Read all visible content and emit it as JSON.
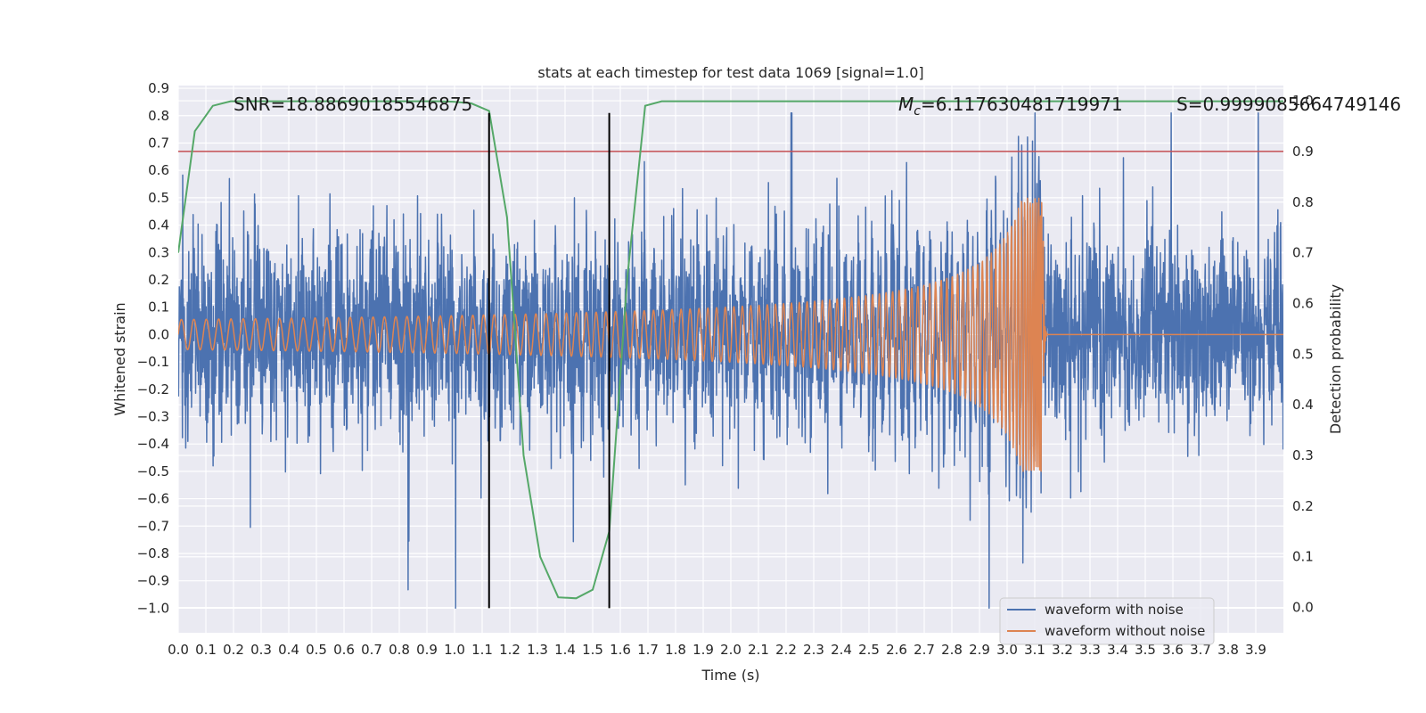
{
  "chart_data": {
    "type": "line",
    "title": "stats at each timestep for test data 1069 [signal=1.0]",
    "xlabel": "Time (s)",
    "ylabel": "Whitened strain",
    "y2label": "Detection probability",
    "xlim": [
      0.0,
      4.0
    ],
    "ylim": [
      -1.09,
      0.91
    ],
    "y2lim": [
      -0.05,
      1.03
    ],
    "xticks": [
      "0.0",
      "0.1",
      "0.2",
      "0.3",
      "0.4",
      "0.5",
      "0.6",
      "0.7",
      "0.8",
      "0.9",
      "1.0",
      "1.1",
      "1.2",
      "1.3",
      "1.4",
      "1.5",
      "1.6",
      "1.7",
      "1.8",
      "1.9",
      "2.0",
      "2.1",
      "2.2",
      "2.3",
      "2.4",
      "2.5",
      "2.6",
      "2.7",
      "2.8",
      "2.9",
      "3.0",
      "3.1",
      "3.2",
      "3.3",
      "3.4",
      "3.5",
      "3.6",
      "3.7",
      "3.8",
      "3.9"
    ],
    "yticks": [
      "0.9",
      "0.8",
      "0.7",
      "0.6",
      "0.5",
      "0.4",
      "0.3",
      "0.2",
      "0.1",
      "0.0",
      "-0.1",
      "-0.2",
      "-0.3",
      "-0.4",
      "-0.5",
      "-0.6",
      "-0.7",
      "-0.8",
      "-0.9",
      "-1.0"
    ],
    "y2ticks": [
      "1.0",
      "0.9",
      "0.8",
      "0.7",
      "0.6",
      "0.5",
      "0.4",
      "0.3",
      "0.2",
      "0.1",
      "0.0"
    ],
    "annotations": {
      "snr": "SNR=18.88690185546875",
      "mc_symbol": "M",
      "mc_sub": "c",
      "mc_value": "=6.117630481719971",
      "s": "S=0.9999085664749146"
    },
    "threshold": 0.9,
    "vlines": [
      1.125,
      1.56
    ],
    "noise": {
      "amplitude_std": 0.17,
      "merger_time": 3.13,
      "seed": 1069
    },
    "chirp": {
      "amp_start": 0.055,
      "amp_peak": 0.5,
      "f_start": 22.0,
      "t_merge": 3.13,
      "ringdown_end": 3.145
    },
    "series": [
      {
        "name": "waveform with noise",
        "color": "#4c72b0"
      },
      {
        "name": "waveform without noise",
        "color": "#dd8452"
      },
      {
        "name": "detection probability",
        "color": "#55a868",
        "x": [
          0.0,
          0.06,
          0.125,
          0.19,
          0.25,
          0.31,
          0.375,
          0.44,
          0.5,
          0.56,
          0.625,
          0.69,
          0.75,
          0.81,
          0.875,
          0.94,
          1.0,
          1.06,
          1.125,
          1.19,
          1.25,
          1.31,
          1.375,
          1.44,
          1.5,
          1.56,
          1.625,
          1.69,
          1.75,
          1.81,
          1.875,
          1.94,
          2.0,
          2.5,
          3.0,
          3.5,
          4.0
        ],
        "values": [
          0.7,
          0.94,
          0.99,
          0.999,
          0.999,
          0.999,
          0.999,
          0.999,
          0.999,
          0.999,
          0.999,
          0.999,
          0.999,
          0.999,
          0.999,
          0.999,
          0.998,
          0.995,
          0.98,
          0.77,
          0.3,
          0.1,
          0.02,
          0.018,
          0.035,
          0.15,
          0.65,
          0.99,
          0.999,
          0.999,
          0.999,
          0.999,
          0.999,
          0.999,
          0.999,
          0.999,
          0.999
        ]
      }
    ],
    "legend": {
      "position": "bottom-right",
      "entries": [
        "waveform with noise",
        "waveform without noise"
      ]
    }
  }
}
